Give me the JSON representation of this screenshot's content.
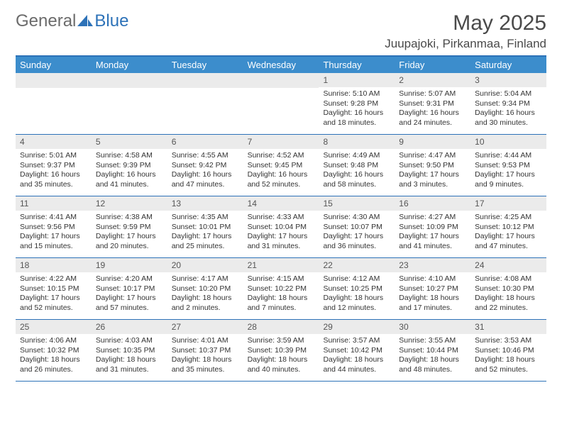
{
  "logo": {
    "text1": "General",
    "text2": "Blue"
  },
  "title": "May 2025",
  "location": "Juupajoki, Pirkanmaa, Finland",
  "colors": {
    "header_bg": "#3c8dcc",
    "header_border": "#2d72b8",
    "daynum_bg": "#ebebeb",
    "text": "#333333",
    "logo_gray": "#6b6b6b",
    "logo_blue": "#2d72b8"
  },
  "weekdays": [
    "Sunday",
    "Monday",
    "Tuesday",
    "Wednesday",
    "Thursday",
    "Friday",
    "Saturday"
  ],
  "weeks": [
    [
      null,
      null,
      null,
      null,
      {
        "n": "1",
        "sr": "5:10 AM",
        "ss": "9:28 PM",
        "dl": "16 hours and 18 minutes."
      },
      {
        "n": "2",
        "sr": "5:07 AM",
        "ss": "9:31 PM",
        "dl": "16 hours and 24 minutes."
      },
      {
        "n": "3",
        "sr": "5:04 AM",
        "ss": "9:34 PM",
        "dl": "16 hours and 30 minutes."
      }
    ],
    [
      {
        "n": "4",
        "sr": "5:01 AM",
        "ss": "9:37 PM",
        "dl": "16 hours and 35 minutes."
      },
      {
        "n": "5",
        "sr": "4:58 AM",
        "ss": "9:39 PM",
        "dl": "16 hours and 41 minutes."
      },
      {
        "n": "6",
        "sr": "4:55 AM",
        "ss": "9:42 PM",
        "dl": "16 hours and 47 minutes."
      },
      {
        "n": "7",
        "sr": "4:52 AM",
        "ss": "9:45 PM",
        "dl": "16 hours and 52 minutes."
      },
      {
        "n": "8",
        "sr": "4:49 AM",
        "ss": "9:48 PM",
        "dl": "16 hours and 58 minutes."
      },
      {
        "n": "9",
        "sr": "4:47 AM",
        "ss": "9:50 PM",
        "dl": "17 hours and 3 minutes."
      },
      {
        "n": "10",
        "sr": "4:44 AM",
        "ss": "9:53 PM",
        "dl": "17 hours and 9 minutes."
      }
    ],
    [
      {
        "n": "11",
        "sr": "4:41 AM",
        "ss": "9:56 PM",
        "dl": "17 hours and 15 minutes."
      },
      {
        "n": "12",
        "sr": "4:38 AM",
        "ss": "9:59 PM",
        "dl": "17 hours and 20 minutes."
      },
      {
        "n": "13",
        "sr": "4:35 AM",
        "ss": "10:01 PM",
        "dl": "17 hours and 25 minutes."
      },
      {
        "n": "14",
        "sr": "4:33 AM",
        "ss": "10:04 PM",
        "dl": "17 hours and 31 minutes."
      },
      {
        "n": "15",
        "sr": "4:30 AM",
        "ss": "10:07 PM",
        "dl": "17 hours and 36 minutes."
      },
      {
        "n": "16",
        "sr": "4:27 AM",
        "ss": "10:09 PM",
        "dl": "17 hours and 41 minutes."
      },
      {
        "n": "17",
        "sr": "4:25 AM",
        "ss": "10:12 PM",
        "dl": "17 hours and 47 minutes."
      }
    ],
    [
      {
        "n": "18",
        "sr": "4:22 AM",
        "ss": "10:15 PM",
        "dl": "17 hours and 52 minutes."
      },
      {
        "n": "19",
        "sr": "4:20 AM",
        "ss": "10:17 PM",
        "dl": "17 hours and 57 minutes."
      },
      {
        "n": "20",
        "sr": "4:17 AM",
        "ss": "10:20 PM",
        "dl": "18 hours and 2 minutes."
      },
      {
        "n": "21",
        "sr": "4:15 AM",
        "ss": "10:22 PM",
        "dl": "18 hours and 7 minutes."
      },
      {
        "n": "22",
        "sr": "4:12 AM",
        "ss": "10:25 PM",
        "dl": "18 hours and 12 minutes."
      },
      {
        "n": "23",
        "sr": "4:10 AM",
        "ss": "10:27 PM",
        "dl": "18 hours and 17 minutes."
      },
      {
        "n": "24",
        "sr": "4:08 AM",
        "ss": "10:30 PM",
        "dl": "18 hours and 22 minutes."
      }
    ],
    [
      {
        "n": "25",
        "sr": "4:06 AM",
        "ss": "10:32 PM",
        "dl": "18 hours and 26 minutes."
      },
      {
        "n": "26",
        "sr": "4:03 AM",
        "ss": "10:35 PM",
        "dl": "18 hours and 31 minutes."
      },
      {
        "n": "27",
        "sr": "4:01 AM",
        "ss": "10:37 PM",
        "dl": "18 hours and 35 minutes."
      },
      {
        "n": "28",
        "sr": "3:59 AM",
        "ss": "10:39 PM",
        "dl": "18 hours and 40 minutes."
      },
      {
        "n": "29",
        "sr": "3:57 AM",
        "ss": "10:42 PM",
        "dl": "18 hours and 44 minutes."
      },
      {
        "n": "30",
        "sr": "3:55 AM",
        "ss": "10:44 PM",
        "dl": "18 hours and 48 minutes."
      },
      {
        "n": "31",
        "sr": "3:53 AM",
        "ss": "10:46 PM",
        "dl": "18 hours and 52 minutes."
      }
    ]
  ],
  "labels": {
    "sunrise": "Sunrise: ",
    "sunset": "Sunset: ",
    "daylight": "Daylight: "
  }
}
